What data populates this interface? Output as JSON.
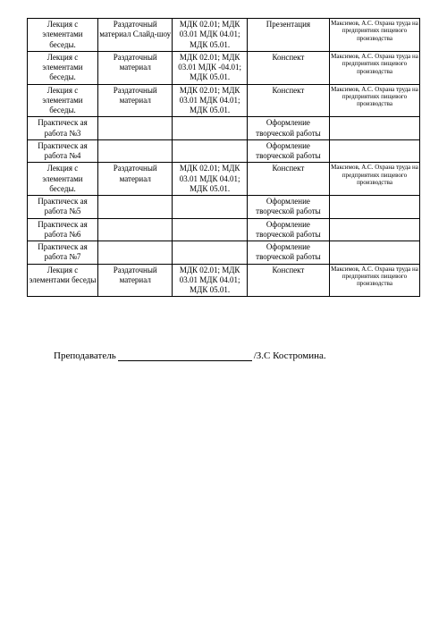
{
  "table": {
    "col_widths": [
      "18%",
      "19%",
      "19%",
      "21%",
      "23%"
    ],
    "rows": [
      {
        "c0": "Лекция с элементами беседы.",
        "c1": "Раздаточный материал Слайд-шоу",
        "c2": "МДК 02.01; МДК 03.01 МДК 04.01; МДК 05.01.",
        "c3": "Презентация",
        "c4": "Максимов, А.С. Охрана труда на предприятиях пищевого производства"
      },
      {
        "c0": "Лекция с элементами беседы.",
        "c1": "Раздаточный материал",
        "c2": "МДК 02.01; МДК 03.01 МДК -04.01; МДК 05.01.",
        "c3": "Конспект",
        "c4": "Максимов, А.С. Охрана труда на предприятиях пищевого производства"
      },
      {
        "c0": "Лекция с элементами беседы.",
        "c1": "Раздаточный материал",
        "c2": "МДК 02.01; МДК 03.01 МДК 04.01; МДК 05.01.",
        "c3": "Конспект",
        "c4": "Максимов, А.С. Охрана труда на предприятиях пищевого производства"
      },
      {
        "c0": "Практическ ая работа №3",
        "c1": "",
        "c2": "",
        "c3": "Оформление творческой работы",
        "c4": ""
      },
      {
        "c0": "Практическ ая работа №4",
        "c1": "",
        "c2": "",
        "c3": "Оформление творческой работы",
        "c4": ""
      },
      {
        "c0": "Лекция с элементами беседы.",
        "c1": "Раздаточный материал",
        "c2": "МДК 02.01; МДК 03.01 МДК 04.01; МДК 05.01.",
        "c3": "Конспект",
        "c4": "Максимов, А.С. Охрана труда на предприятиях пищевого производства"
      },
      {
        "c0": "Практическ ая работа №5",
        "c1": "",
        "c2": "",
        "c3": "Оформление творческой работы",
        "c4": ""
      },
      {
        "c0": "Практическ ая работа №6",
        "c1": "",
        "c2": "",
        "c3": "Оформление творческой работы",
        "c4": ""
      },
      {
        "c0": "Практическ ая работа №7",
        "c1": "",
        "c2": "",
        "c3": "Оформление творческой работы",
        "c4": ""
      },
      {
        "c0": "Лекция с элементами беседы",
        "c1": "Раздаточный материал",
        "c2": "МДК 02.01; МДК 03.01 МДК 04.01; МДК 05.01.",
        "c3": "Конспект",
        "c4": "Максимов, А.С. Охрана труда на предприятиях пищевого производства"
      }
    ]
  },
  "footer": {
    "label": "Преподаватель",
    "name": "/З.С Костромина."
  }
}
